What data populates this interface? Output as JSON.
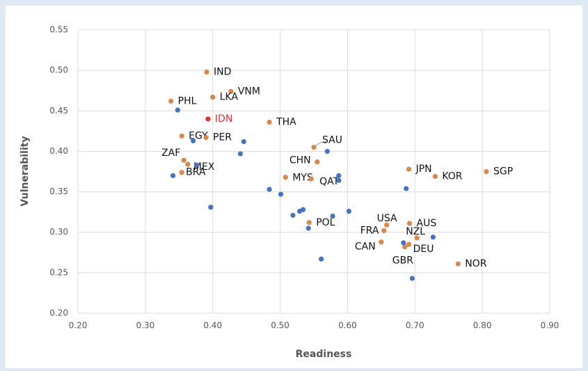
{
  "chart_data": {
    "type": "scatter",
    "x_label": "Readiness",
    "y_label": "Vulnerability",
    "xlim": [
      0.2,
      0.9
    ],
    "xticks": [
      {
        "value": 0.2,
        "label": "0.20"
      },
      {
        "value": 0.3,
        "label": "0.30"
      },
      {
        "value": 0.4,
        "label": "0.40"
      },
      {
        "value": 0.5,
        "label": "0.50"
      },
      {
        "value": 0.6,
        "label": "0.60"
      },
      {
        "value": 0.7,
        "label": "0.70"
      },
      {
        "value": 0.8,
        "label": "0.80"
      },
      {
        "value": 0.9,
        "label": "0.90"
      }
    ],
    "ylim": [
      0.2,
      0.55
    ],
    "yticks": [
      {
        "value": 0.2,
        "label": "0.20"
      },
      {
        "value": 0.25,
        "label": "0.25"
      },
      {
        "value": 0.3,
        "label": "0.30"
      },
      {
        "value": 0.35,
        "label": "0.35"
      },
      {
        "value": 0.4,
        "label": "0.40"
      },
      {
        "value": 0.45,
        "label": "0.45"
      },
      {
        "value": 0.5,
        "label": "0.50"
      },
      {
        "value": 0.55,
        "label": "0.55"
      }
    ],
    "grid": true,
    "series": [
      {
        "color": "#d9874a",
        "label_color": "#111111",
        "labels": [
          "IND",
          "VNM",
          "LKA",
          "PHL",
          "THA",
          "EGY",
          "PER",
          "SAU",
          "ZAF",
          "MEX",
          "BRA",
          "CHN",
          "MYS",
          "QAT",
          "JPN",
          "KOR",
          "SGP",
          "AUS",
          "USA",
          "FRA",
          "POL",
          "NZL",
          "CAN",
          "DEU",
          "GBR",
          "NOR"
        ],
        "x": [
          0.391,
          0.427,
          0.4,
          0.338,
          0.484,
          0.354,
          0.39,
          0.55,
          0.357,
          0.363,
          0.354,
          0.555,
          0.508,
          0.546,
          0.691,
          0.73,
          0.806,
          0.692,
          0.658,
          0.654,
          0.543,
          0.703,
          0.65,
          0.691,
          0.685,
          0.764
        ],
        "values": [
          0.498,
          0.474,
          0.467,
          0.462,
          0.436,
          0.419,
          0.417,
          0.405,
          0.389,
          0.384,
          0.374,
          0.387,
          0.368,
          0.366,
          0.378,
          0.369,
          0.375,
          0.311,
          0.309,
          0.302,
          0.312,
          0.293,
          0.288,
          0.285,
          0.282,
          0.261
        ]
      },
      {
        "color": "#e03030",
        "label_color": "#e03030",
        "labels": [
          "IDN"
        ],
        "x": [
          0.393
        ],
        "values": [
          0.44
        ]
      },
      {
        "color": "#4472c4",
        "x": [
          0.348,
          0.371,
          0.446,
          0.441,
          0.376,
          0.341,
          0.397,
          0.57,
          0.587,
          0.587,
          0.484,
          0.501,
          0.519,
          0.529,
          0.534,
          0.542,
          0.578,
          0.602,
          0.687,
          0.561,
          0.683,
          0.727,
          0.696
        ],
        "values": [
          0.451,
          0.413,
          0.412,
          0.397,
          0.383,
          0.37,
          0.331,
          0.4,
          0.37,
          0.364,
          0.353,
          0.347,
          0.321,
          0.326,
          0.328,
          0.305,
          0.32,
          0.326,
          0.354,
          0.267,
          0.287,
          0.294,
          0.243
        ]
      }
    ]
  }
}
